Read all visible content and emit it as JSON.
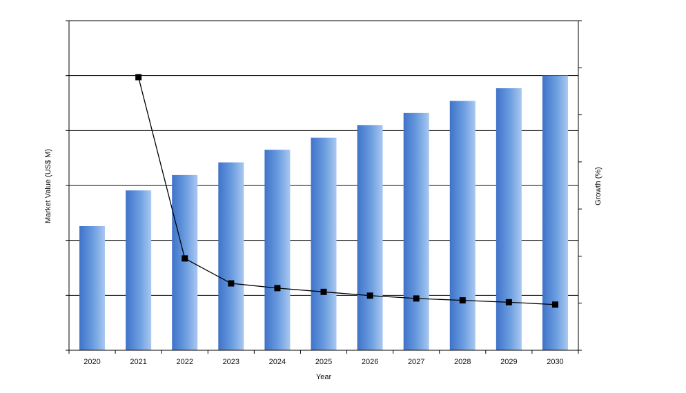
{
  "chart_data": {
    "type": "bar",
    "categories": [
      "2020",
      "2021",
      "2022",
      "2023",
      "2024",
      "2025",
      "2026",
      "2027",
      "2028",
      "2029",
      "2030"
    ],
    "xlabel": "Year",
    "ylabel": "Market Value (US$ M)",
    "y2label": "Growth (%)",
    "ylim": [
      0,
      6
    ],
    "y2lim": [
      0,
      7
    ],
    "grid": true,
    "legend": "none",
    "series": [
      {
        "kind": "bar",
        "axis": "left",
        "color": "#5b8fd6",
        "values": [
          2.26,
          2.91,
          3.19,
          3.42,
          3.65,
          3.87,
          4.1,
          4.32,
          4.54,
          4.77,
          5.0
        ]
      },
      {
        "kind": "line",
        "axis": "right",
        "color": "#000000",
        "values": [
          null,
          5.8,
          1.95,
          1.42,
          1.32,
          1.24,
          1.16,
          1.1,
          1.06,
          1.02,
          0.97
        ]
      }
    ]
  }
}
